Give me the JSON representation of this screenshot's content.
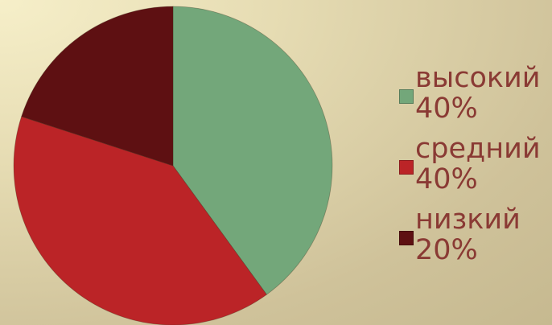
{
  "chart_data": {
    "type": "pie",
    "title": "",
    "start_angle_deg": 0,
    "direction": "clockwise",
    "legend_position": "right",
    "slices": [
      {
        "label": "высокий",
        "value": 40,
        "percent_label": "40%",
        "color": "#73a77a"
      },
      {
        "label": "средний",
        "value": 40,
        "percent_label": "40%",
        "color": "#bb2427"
      },
      {
        "label": "низкий",
        "value": 20,
        "percent_label": "20%",
        "color": "#5e1012"
      }
    ]
  }
}
